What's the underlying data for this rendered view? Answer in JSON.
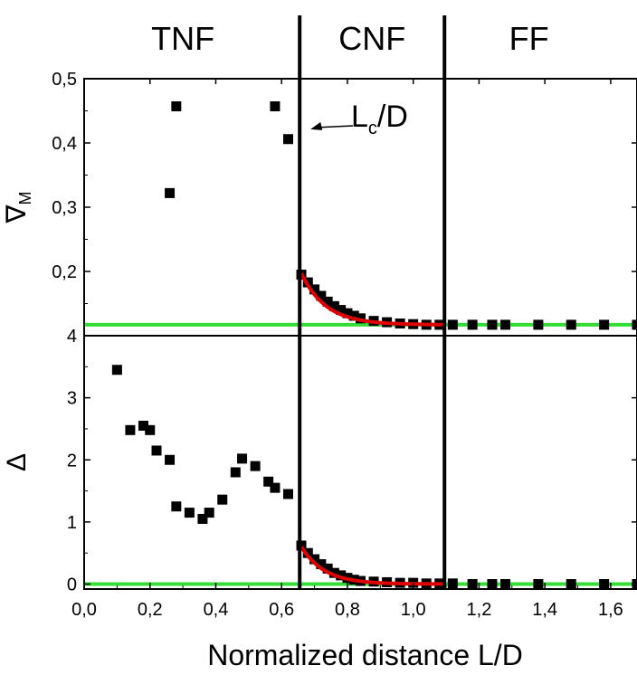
{
  "chart_data": {
    "type": "scatter",
    "xlabel": "Normalized distance L/D",
    "x_ticks": [
      "0,0",
      "0,2",
      "0,4",
      "0,6",
      "0,8",
      "1,0",
      "1,2",
      "1,4",
      "1,6"
    ],
    "xlim": [
      0.0,
      1.68
    ],
    "regions": [
      {
        "label": "TNF"
      },
      {
        "label": "CNF"
      },
      {
        "label": "FF"
      }
    ],
    "boundaries": [
      0.655,
      1.095
    ],
    "annotation": {
      "text_main": "L",
      "text_sub": "c",
      "text_tail": "/D",
      "points_to_x": 0.655,
      "points_to_y": 0.41
    },
    "colors": {
      "markers": "#000000",
      "fit": "#e00000",
      "baseline": "#33dd33",
      "boundary": "#000000"
    },
    "panels": [
      {
        "ylabel_main": "∇",
        "ylabel_sub": "M",
        "ylim": [
          0.1,
          0.5
        ],
        "y_ticks": [
          "0,2",
          "0,3",
          "0,4",
          "0,5"
        ],
        "y_tick_values": [
          0.2,
          0.3,
          0.4,
          0.5
        ],
        "baseline": 0.117,
        "fit": {
          "x_start": 0.66,
          "x_end": 1.1,
          "a": 0.08,
          "tau": 0.075,
          "c": 0.117
        },
        "points": [
          {
            "x": 0.26,
            "y": 0.322
          },
          {
            "x": 0.28,
            "y": 0.457
          },
          {
            "x": 0.58,
            "y": 0.457
          },
          {
            "x": 0.62,
            "y": 0.406
          },
          {
            "x": 0.66,
            "y": 0.195
          },
          {
            "x": 0.68,
            "y": 0.183
          },
          {
            "x": 0.7,
            "y": 0.172
          },
          {
            "x": 0.72,
            "y": 0.162
          },
          {
            "x": 0.74,
            "y": 0.153
          },
          {
            "x": 0.76,
            "y": 0.146
          },
          {
            "x": 0.78,
            "y": 0.14
          },
          {
            "x": 0.8,
            "y": 0.135
          },
          {
            "x": 0.82,
            "y": 0.131
          },
          {
            "x": 0.84,
            "y": 0.127
          },
          {
            "x": 0.88,
            "y": 0.123
          },
          {
            "x": 0.92,
            "y": 0.121
          },
          {
            "x": 0.96,
            "y": 0.119
          },
          {
            "x": 1.0,
            "y": 0.118
          },
          {
            "x": 1.04,
            "y": 0.117
          },
          {
            "x": 1.08,
            "y": 0.117
          },
          {
            "x": 1.12,
            "y": 0.117
          },
          {
            "x": 1.18,
            "y": 0.117
          },
          {
            "x": 1.24,
            "y": 0.117
          },
          {
            "x": 1.28,
            "y": 0.117
          },
          {
            "x": 1.38,
            "y": 0.117
          },
          {
            "x": 1.48,
            "y": 0.117
          },
          {
            "x": 1.58,
            "y": 0.117
          },
          {
            "x": 1.68,
            "y": 0.117
          }
        ]
      },
      {
        "ylabel_main": "Δ",
        "ylabel_sub": "",
        "ylim": [
          -0.08,
          4.0
        ],
        "y_ticks": [
          "0",
          "1",
          "2",
          "3",
          "4"
        ],
        "y_tick_values": [
          0,
          1,
          2,
          3,
          4
        ],
        "baseline": 0.0,
        "fit": {
          "x_start": 0.66,
          "x_end": 1.1,
          "a": 0.6,
          "tau": 0.07,
          "c": 0.0
        },
        "points": [
          {
            "x": 0.1,
            "y": 3.45
          },
          {
            "x": 0.14,
            "y": 2.48
          },
          {
            "x": 0.18,
            "y": 2.55
          },
          {
            "x": 0.2,
            "y": 2.48
          },
          {
            "x": 0.22,
            "y": 2.15
          },
          {
            "x": 0.26,
            "y": 2.0
          },
          {
            "x": 0.28,
            "y": 1.25
          },
          {
            "x": 0.32,
            "y": 1.15
          },
          {
            "x": 0.36,
            "y": 1.05
          },
          {
            "x": 0.38,
            "y": 1.15
          },
          {
            "x": 0.42,
            "y": 1.36
          },
          {
            "x": 0.46,
            "y": 1.8
          },
          {
            "x": 0.48,
            "y": 2.02
          },
          {
            "x": 0.52,
            "y": 1.9
          },
          {
            "x": 0.56,
            "y": 1.65
          },
          {
            "x": 0.58,
            "y": 1.55
          },
          {
            "x": 0.62,
            "y": 1.45
          },
          {
            "x": 0.66,
            "y": 0.62
          },
          {
            "x": 0.68,
            "y": 0.5
          },
          {
            "x": 0.7,
            "y": 0.4
          },
          {
            "x": 0.72,
            "y": 0.32
          },
          {
            "x": 0.74,
            "y": 0.25
          },
          {
            "x": 0.76,
            "y": 0.18
          },
          {
            "x": 0.78,
            "y": 0.14
          },
          {
            "x": 0.8,
            "y": 0.1
          },
          {
            "x": 0.82,
            "y": 0.07
          },
          {
            "x": 0.84,
            "y": 0.05
          },
          {
            "x": 0.88,
            "y": 0.04
          },
          {
            "x": 0.92,
            "y": 0.03
          },
          {
            "x": 0.96,
            "y": 0.02
          },
          {
            "x": 1.0,
            "y": 0.02
          },
          {
            "x": 1.04,
            "y": 0.01
          },
          {
            "x": 1.08,
            "y": 0.01
          },
          {
            "x": 1.12,
            "y": 0.01
          },
          {
            "x": 1.18,
            "y": 0.0
          },
          {
            "x": 1.24,
            "y": 0.0
          },
          {
            "x": 1.28,
            "y": 0.0
          },
          {
            "x": 1.38,
            "y": 0.0
          },
          {
            "x": 1.48,
            "y": 0.0
          },
          {
            "x": 1.58,
            "y": 0.0
          },
          {
            "x": 1.68,
            "y": 0.0
          }
        ]
      }
    ]
  }
}
